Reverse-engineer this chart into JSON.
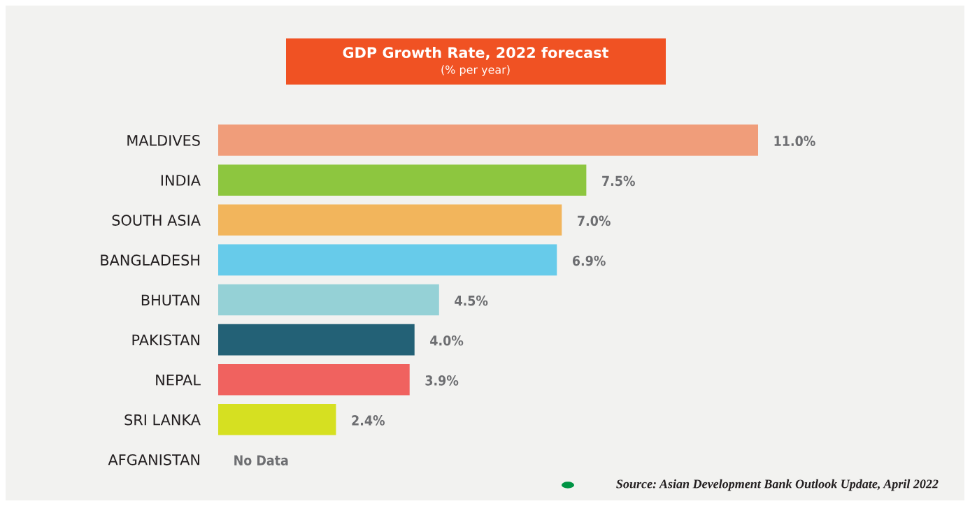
{
  "chart_data": {
    "type": "bar",
    "orientation": "horizontal",
    "title": "GDP Growth Rate, 2022 forecast",
    "subtitle": "(% per year)",
    "categories": [
      "MALDIVES",
      "INDIA",
      "SOUTH ASIA",
      "BANGLADESH",
      "BHUTAN",
      "PAKISTAN",
      "NEPAL",
      "SRI LANKA",
      "AFGANISTAN"
    ],
    "values": [
      11.0,
      7.5,
      7.0,
      6.9,
      4.5,
      4.0,
      3.9,
      2.4,
      null
    ],
    "value_labels": [
      "11.0%",
      "7.5%",
      "7.0%",
      "6.9%",
      "4.5%",
      "4.0%",
      "3.9%",
      "2.4%",
      "No Data"
    ],
    "colors": [
      "#f09d7a",
      "#8dc63f",
      "#f2b55c",
      "#67cbea",
      "#95d1d6",
      "#236176",
      "#f0625f",
      "#d6e021",
      "#ffffff"
    ],
    "annotations": [
      "Source: Asian Development Bank Outlook Update, April 2022"
    ],
    "grid": false,
    "legend": false
  }
}
